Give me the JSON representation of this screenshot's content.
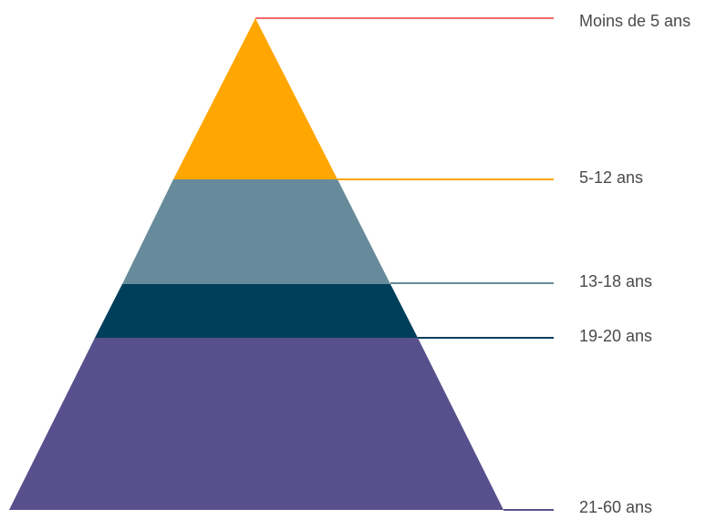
{
  "pyramid": {
    "layers": [
      {
        "label": "Moins de 5 ans",
        "color": "#FFA600",
        "line_color": "#EF6A6A"
      },
      {
        "label": "5-12 ans",
        "color": "#678B9A",
        "line_color": "#FFA600"
      },
      {
        "label": "13-18 ans",
        "color": "#003F5C",
        "line_color": "#678B9A"
      },
      {
        "label": "19-20 ans",
        "color": "#58508D",
        "line_color": "#003F5C"
      },
      {
        "label": "21-60 ans",
        "color": "#58508D",
        "line_color": "#58508D"
      }
    ]
  }
}
